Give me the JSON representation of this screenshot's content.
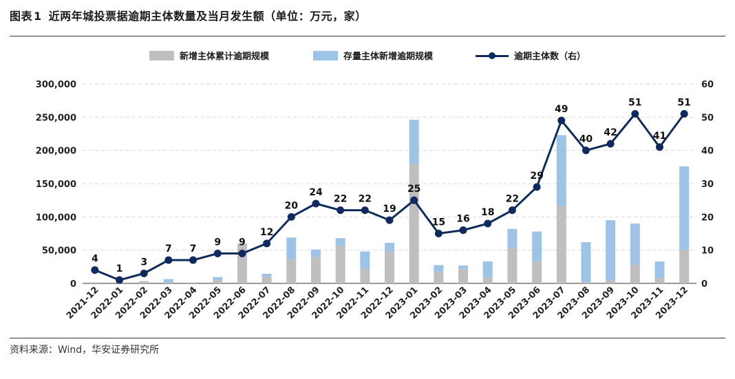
{
  "figure": {
    "label": "图表",
    "number": "1",
    "title": "近两年城投票据逾期主体数量及当月发生额（单位：万元，家）"
  },
  "source": "资料来源：Wind，华安证券研究所",
  "colors": {
    "new": "#bfbfbf",
    "stock": "#9dc3e6",
    "line": "#0f2a5c",
    "grid": "#d9d9d9"
  },
  "chart_data": {
    "type": "bar",
    "categories": [
      "2021-12",
      "2022-01",
      "2022-02",
      "2022-03",
      "2022-04",
      "2022-05",
      "2022-06",
      "2022-07",
      "2022-08",
      "2022-09",
      "2022-10",
      "2022-11",
      "2022-12",
      "2023-01",
      "2023-02",
      "2023-03",
      "2023-04",
      "2023-05",
      "2023-06",
      "2023-07",
      "2023-08",
      "2023-09",
      "2023-10",
      "2023-11",
      "2023-12"
    ],
    "series": [
      {
        "name": "新增主体累计逾期规模",
        "type": "bar",
        "stack": "amount",
        "axis": "left",
        "values": [
          1500,
          0,
          3500,
          1000,
          1500,
          5000,
          60000,
          10000,
          36000,
          40000,
          57000,
          22000,
          48000,
          180000,
          17000,
          22000,
          10000,
          54000,
          33000,
          117000,
          2000,
          4000,
          28000,
          8000,
          50000
        ]
      },
      {
        "name": "存量主体新增逾期规模",
        "type": "bar",
        "stack": "amount",
        "axis": "left",
        "values": [
          0,
          0,
          0,
          5500,
          0,
          4500,
          0,
          4500,
          33000,
          11000,
          11000,
          26000,
          13000,
          66000,
          10500,
          5000,
          23000,
          28000,
          45000,
          106000,
          60000,
          91000,
          62000,
          25000,
          126000
        ]
      },
      {
        "name": "逾期主体数（右）",
        "type": "line",
        "axis": "right",
        "values": [
          4,
          1,
          3,
          7,
          7,
          9,
          9,
          12,
          20,
          24,
          22,
          22,
          19,
          25,
          15,
          16,
          18,
          22,
          29,
          49,
          40,
          42,
          51,
          41,
          51
        ]
      }
    ],
    "y_left": {
      "min": 0,
      "max": 300000,
      "ticks": [
        "0",
        "50,000",
        "100,000",
        "150,000",
        "200,000",
        "250,000",
        "300,000"
      ]
    },
    "y_right": {
      "min": 0,
      "max": 60,
      "ticks": [
        "0",
        "10",
        "20",
        "30",
        "40",
        "50",
        "60"
      ]
    },
    "grid": true,
    "legend_position": "top"
  }
}
